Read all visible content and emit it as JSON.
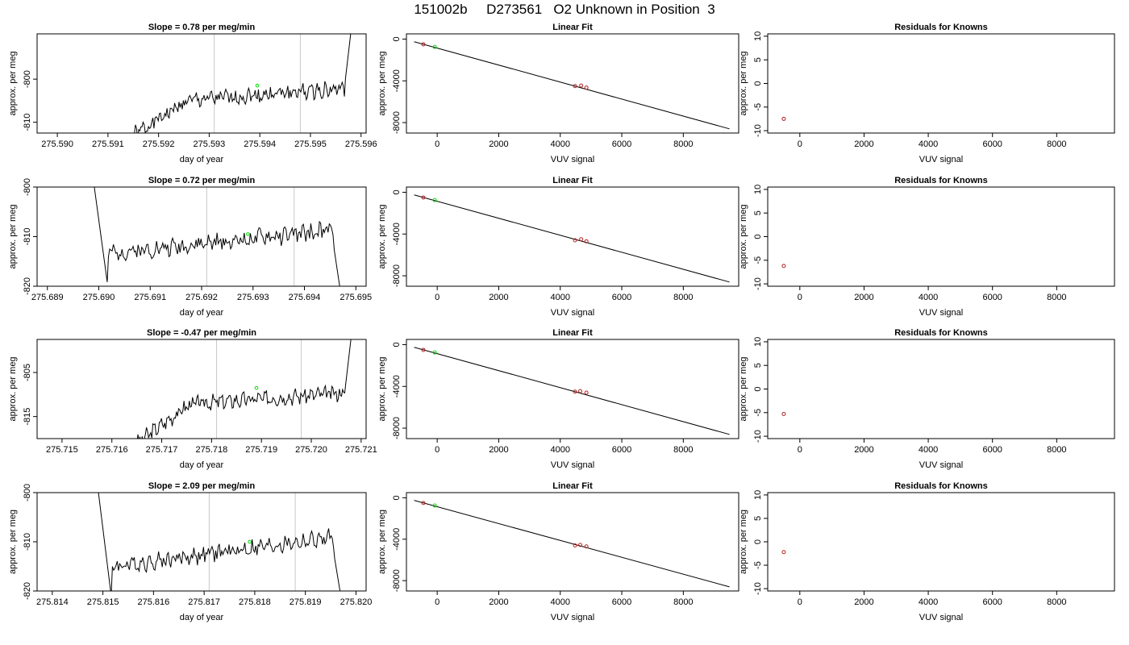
{
  "title": "151002b     D273561   O2 Unknown in Position  3",
  "rows": [
    {
      "time_series": {
        "title": "Slope =  0.78  per meg/min",
        "xlabel": "day of year",
        "ylabel": "approx. per meg",
        "xlim": [
          275.5896,
          275.5961
        ],
        "ylim": [
          -812.5,
          -789.5
        ],
        "xticks": [
          "275.590",
          "275.591",
          "275.592",
          "275.593",
          "275.594",
          "275.595",
          "275.596"
        ],
        "yticks": [
          "-810",
          "-800"
        ],
        "vlines": [
          275.5931,
          275.5948
        ],
        "marker": {
          "x": 275.59395,
          "y": -801.5,
          "color": "#00dd00"
        },
        "trace": {
          "x_start": 275.5915,
          "x_end": 275.5958,
          "y_start": -813,
          "y_end": -789,
          "level": -802,
          "rise": 4,
          "noise": 1.5,
          "exit": "top",
          "seed": 1
        }
      },
      "linear_fit": {
        "title": "Linear Fit",
        "xlabel": "VUV signal",
        "ylabel": "approx. per meg",
        "xlim": [
          -1000,
          9800
        ],
        "ylim": [
          -9000,
          500
        ],
        "xticks": [
          "0",
          "2000",
          "4000",
          "6000",
          "8000"
        ],
        "yticks": [
          "0",
          "-4000",
          "-8000"
        ],
        "line": {
          "x1": -750,
          "y1": -250,
          "x2": 9500,
          "y2": -8600
        },
        "knowns": [
          {
            "x": -450,
            "y": -500
          },
          {
            "x": 4480,
            "y": -4500
          },
          {
            "x": 4680,
            "y": -4450
          },
          {
            "x": 4850,
            "y": -4650
          }
        ],
        "unknown": {
          "x": -80,
          "y": -750
        }
      },
      "residuals": {
        "title": "Residuals for Knowns",
        "xlabel": "VUV signal",
        "ylabel": "approx. per meg",
        "xlim": [
          -1000,
          9800
        ],
        "ylim": [
          -10.5,
          10.5
        ],
        "xticks": [
          "0",
          "2000",
          "4000",
          "6000",
          "8000"
        ],
        "yticks": [
          "10",
          "5",
          "0",
          "-5",
          "-10"
        ],
        "points": [
          {
            "x": -500,
            "y": -7.5
          }
        ]
      }
    },
    {
      "time_series": {
        "title": "Slope =  0.72  per meg/min",
        "xlabel": "day of year",
        "ylabel": "approx. per meg",
        "xlim": [
          275.6888,
          275.6952
        ],
        "ylim": [
          -820,
          -800
        ],
        "xticks": [
          "275.689",
          "275.690",
          "275.691",
          "275.692",
          "275.693",
          "275.694",
          "275.695"
        ],
        "yticks": [
          "-820",
          "-810",
          "-800"
        ],
        "vlines": [
          275.6921,
          275.6938
        ],
        "marker": {
          "x": 275.6929,
          "y": -809.5,
          "color": "#00dd00"
        },
        "trace": {
          "x_start": 275.6899,
          "x_end": 275.6947,
          "y_start": -799,
          "y_end": -821,
          "level": -811,
          "rise": 4,
          "noise": 1.4,
          "exit": "bottom",
          "seed": 2
        }
      },
      "linear_fit": {
        "title": "Linear Fit",
        "xlabel": "VUV signal",
        "ylabel": "approx. per meg",
        "xlim": [
          -1000,
          9800
        ],
        "ylim": [
          -9000,
          500
        ],
        "xticks": [
          "0",
          "2000",
          "4000",
          "6000",
          "8000"
        ],
        "yticks": [
          "0",
          "-4000",
          "-8000"
        ],
        "line": {
          "x1": -750,
          "y1": -250,
          "x2": 9500,
          "y2": -8600
        },
        "knowns": [
          {
            "x": -450,
            "y": -500
          },
          {
            "x": 4480,
            "y": -4600
          },
          {
            "x": 4680,
            "y": -4500
          },
          {
            "x": 4850,
            "y": -4700
          }
        ],
        "unknown": {
          "x": -80,
          "y": -750
        }
      },
      "residuals": {
        "title": "Residuals for Knowns",
        "xlabel": "VUV signal",
        "ylabel": "approx. per meg",
        "xlim": [
          -1000,
          9800
        ],
        "ylim": [
          -10.5,
          10.5
        ],
        "xticks": [
          "0",
          "2000",
          "4000",
          "6000",
          "8000"
        ],
        "yticks": [
          "10",
          "5",
          "0",
          "-5",
          "-10"
        ],
        "points": [
          {
            "x": -500,
            "y": -6.2
          }
        ]
      }
    },
    {
      "time_series": {
        "title": "Slope =  -0.47  per meg/min",
        "xlabel": "day of year",
        "ylabel": "approx. per meg",
        "xlim": [
          275.7145,
          275.7211
        ],
        "ylim": [
          -820,
          -797.5
        ],
        "xticks": [
          "275.715",
          "275.716",
          "275.717",
          "275.718",
          "275.719",
          "275.720",
          "275.721"
        ],
        "yticks": [
          "-815",
          "-805"
        ],
        "vlines": [
          275.7181,
          275.7198
        ],
        "marker": {
          "x": 275.7189,
          "y": -808.5,
          "color": "#00dd00"
        },
        "trace": {
          "x_start": 275.7165,
          "x_end": 275.7208,
          "y_start": -821,
          "y_end": -797,
          "level": -809.5,
          "rise": 3.5,
          "noise": 1.4,
          "exit": "top",
          "seed": 3
        }
      },
      "linear_fit": {
        "title": "Linear Fit",
        "xlabel": "VUV signal",
        "ylabel": "approx. per meg",
        "xlim": [
          -1000,
          9800
        ],
        "ylim": [
          -9000,
          500
        ],
        "xticks": [
          "0",
          "2000",
          "4000",
          "6000",
          "8000"
        ],
        "yticks": [
          "0",
          "-4000",
          "-8000"
        ],
        "line": {
          "x1": -750,
          "y1": -250,
          "x2": 9500,
          "y2": -8600
        },
        "knowns": [
          {
            "x": -450,
            "y": -500
          },
          {
            "x": 4480,
            "y": -4500
          },
          {
            "x": 4650,
            "y": -4450
          },
          {
            "x": 4850,
            "y": -4600
          }
        ],
        "unknown": {
          "x": -80,
          "y": -750
        }
      },
      "residuals": {
        "title": "Residuals for Knowns",
        "xlabel": "VUV signal",
        "ylabel": "approx. per meg",
        "xlim": [
          -1000,
          9800
        ],
        "ylim": [
          -10.5,
          10.5
        ],
        "xticks": [
          "0",
          "2000",
          "4000",
          "6000",
          "8000"
        ],
        "yticks": [
          "10",
          "5",
          "0",
          "-5",
          "-10"
        ],
        "points": [
          {
            "x": -500,
            "y": -5.3
          }
        ]
      }
    },
    {
      "time_series": {
        "title": "Slope =  2.09  per meg/min",
        "xlabel": "day of year",
        "ylabel": "approx. per meg",
        "xlim": [
          275.8137,
          275.8202
        ],
        "ylim": [
          -820,
          -800
        ],
        "xticks": [
          "275.814",
          "275.815",
          "275.816",
          "275.817",
          "275.818",
          "275.819",
          "275.820"
        ],
        "yticks": [
          "-820",
          "-810",
          "-800"
        ],
        "vlines": [
          275.8171,
          275.8188
        ],
        "marker": {
          "x": 275.8179,
          "y": -810,
          "color": "#00dd00"
        },
        "trace": {
          "x_start": 275.8149,
          "x_end": 275.8197,
          "y_start": -799,
          "y_end": -821,
          "level": -812,
          "rise": 5,
          "noise": 1.4,
          "exit": "bottom",
          "seed": 4
        }
      },
      "linear_fit": {
        "title": "Linear Fit",
        "xlabel": "VUV signal",
        "ylabel": "approx. per meg",
        "xlim": [
          -1000,
          9800
        ],
        "ylim": [
          -9000,
          500
        ],
        "xticks": [
          "0",
          "2000",
          "4000",
          "6000",
          "8000"
        ],
        "yticks": [
          "0",
          "-4000",
          "-8000"
        ],
        "line": {
          "x1": -750,
          "y1": -250,
          "x2": 9500,
          "y2": -8600
        },
        "knowns": [
          {
            "x": -450,
            "y": -500
          },
          {
            "x": 4480,
            "y": -4600
          },
          {
            "x": 4650,
            "y": -4550
          },
          {
            "x": 4850,
            "y": -4700
          }
        ],
        "unknown": {
          "x": -80,
          "y": -750
        }
      },
      "residuals": {
        "title": "Residuals for Knowns",
        "xlabel": "VUV signal",
        "ylabel": "approx. per meg",
        "xlim": [
          -1000,
          9800
        ],
        "ylim": [
          -10.5,
          10.5
        ],
        "xticks": [
          "0",
          "2000",
          "4000",
          "6000",
          "8000"
        ],
        "yticks": [
          "10",
          "5",
          "0",
          "-5",
          "-10"
        ],
        "points": [
          {
            "x": -500,
            "y": -2.2
          }
        ]
      }
    }
  ],
  "chart_data": [
    {
      "type": "line",
      "title": "Slope =  0.78  per meg/min",
      "xlabel": "day of year",
      "ylabel": "approx. per meg",
      "xlim": [
        275.5896,
        275.5961
      ],
      "ylim": [
        -812.5,
        -789.5
      ],
      "series": [
        {
          "x": [
            275.5915,
            275.5925,
            275.5935,
            275.5945,
            275.5958
          ],
          "values": [
            -812,
            -805,
            -802,
            -800,
            -790
          ]
        }
      ]
    },
    {
      "type": "scatter",
      "title": "Linear Fit",
      "xlabel": "VUV signal",
      "ylabel": "approx. per meg",
      "xlim": [
        -1000,
        9800
      ],
      "ylim": [
        -9000,
        500
      ],
      "series": [
        {
          "x": [
            -450,
            4480,
            4680,
            4850
          ],
          "values": [
            -500,
            -4500,
            -4450,
            -4650
          ]
        }
      ]
    },
    {
      "type": "scatter",
      "title": "Residuals for Knowns",
      "xlabel": "VUV signal",
      "ylabel": "approx. per meg",
      "xlim": [
        -1000,
        9800
      ],
      "ylim": [
        -10.5,
        10.5
      ],
      "series": [
        {
          "x": [
            -500
          ],
          "values": [
            -7.5
          ]
        }
      ]
    },
    {
      "type": "line",
      "title": "Slope =  0.72  per meg/min",
      "xlabel": "day of year",
      "ylabel": "approx. per meg",
      "xlim": [
        275.6888,
        275.6952
      ],
      "ylim": [
        -820,
        -800
      ],
      "series": [
        {
          "x": [
            275.6899,
            275.691,
            275.6925,
            275.694,
            275.6947
          ],
          "values": [
            -800,
            -815,
            -810,
            -807,
            -820
          ]
        }
      ]
    },
    {
      "type": "scatter",
      "title": "Linear Fit",
      "xlabel": "VUV signal",
      "ylabel": "approx. per meg",
      "xlim": [
        -1000,
        9800
      ],
      "ylim": [
        -9000,
        500
      ],
      "series": [
        {
          "x": [
            -450,
            4480,
            4680,
            4850
          ],
          "values": [
            -500,
            -4600,
            -4500,
            -4700
          ]
        }
      ]
    },
    {
      "type": "scatter",
      "title": "Residuals for Knowns",
      "xlabel": "VUV signal",
      "ylabel": "approx. per meg",
      "xlim": [
        -1000,
        9800
      ],
      "ylim": [
        -10.5,
        10.5
      ],
      "series": [
        {
          "x": [
            -500
          ],
          "values": [
            -6.2
          ]
        }
      ]
    },
    {
      "type": "line",
      "title": "Slope =  -0.47  per meg/min",
      "xlabel": "day of year",
      "ylabel": "approx. per meg",
      "xlim": [
        275.7145,
        275.7211
      ],
      "ylim": [
        -820,
        -797.5
      ],
      "series": [
        {
          "x": [
            275.7165,
            275.7175,
            275.7185,
            275.7195,
            275.7208
          ],
          "values": [
            -820,
            -811,
            -809,
            -807,
            -798
          ]
        }
      ]
    },
    {
      "type": "scatter",
      "title": "Linear Fit",
      "xlabel": "VUV signal",
      "ylabel": "approx. per meg",
      "xlim": [
        -1000,
        9800
      ],
      "ylim": [
        -9000,
        500
      ],
      "series": [
        {
          "x": [
            -450,
            4480,
            4650,
            4850
          ],
          "values": [
            -500,
            -4500,
            -4450,
            -4600
          ]
        }
      ]
    },
    {
      "type": "scatter",
      "title": "Residuals for Knowns",
      "xlabel": "VUV signal",
      "ylabel": "approx. per meg",
      "xlim": [
        -1000,
        9800
      ],
      "ylim": [
        -10.5,
        10.5
      ],
      "series": [
        {
          "x": [
            -500
          ],
          "values": [
            -5.3
          ]
        }
      ]
    },
    {
      "type": "line",
      "title": "Slope =  2.09  per meg/min",
      "xlabel": "day of year",
      "ylabel": "approx. per meg",
      "xlim": [
        275.8137,
        275.8202
      ],
      "ylim": [
        -820,
        -800
      ],
      "series": [
        {
          "x": [
            275.8149,
            275.816,
            275.8175,
            275.819,
            275.8197
          ],
          "values": [
            -800,
            -816,
            -810,
            -808,
            -820
          ]
        }
      ]
    },
    {
      "type": "scatter",
      "title": "Linear Fit",
      "xlabel": "VUV signal",
      "ylabel": "approx. per meg",
      "xlim": [
        -1000,
        9800
      ],
      "ylim": [
        -9000,
        500
      ],
      "series": [
        {
          "x": [
            -450,
            4480,
            4650,
            4850
          ],
          "values": [
            -500,
            -4600,
            -4550,
            -4700
          ]
        }
      ]
    },
    {
      "type": "scatter",
      "title": "Residuals for Knowns",
      "xlabel": "VUV signal",
      "ylabel": "approx. per meg",
      "xlim": [
        -1000,
        9800
      ],
      "ylim": [
        -10.5,
        10.5
      ],
      "series": [
        {
          "x": [
            -500
          ],
          "values": [
            -2.2
          ]
        }
      ]
    }
  ]
}
